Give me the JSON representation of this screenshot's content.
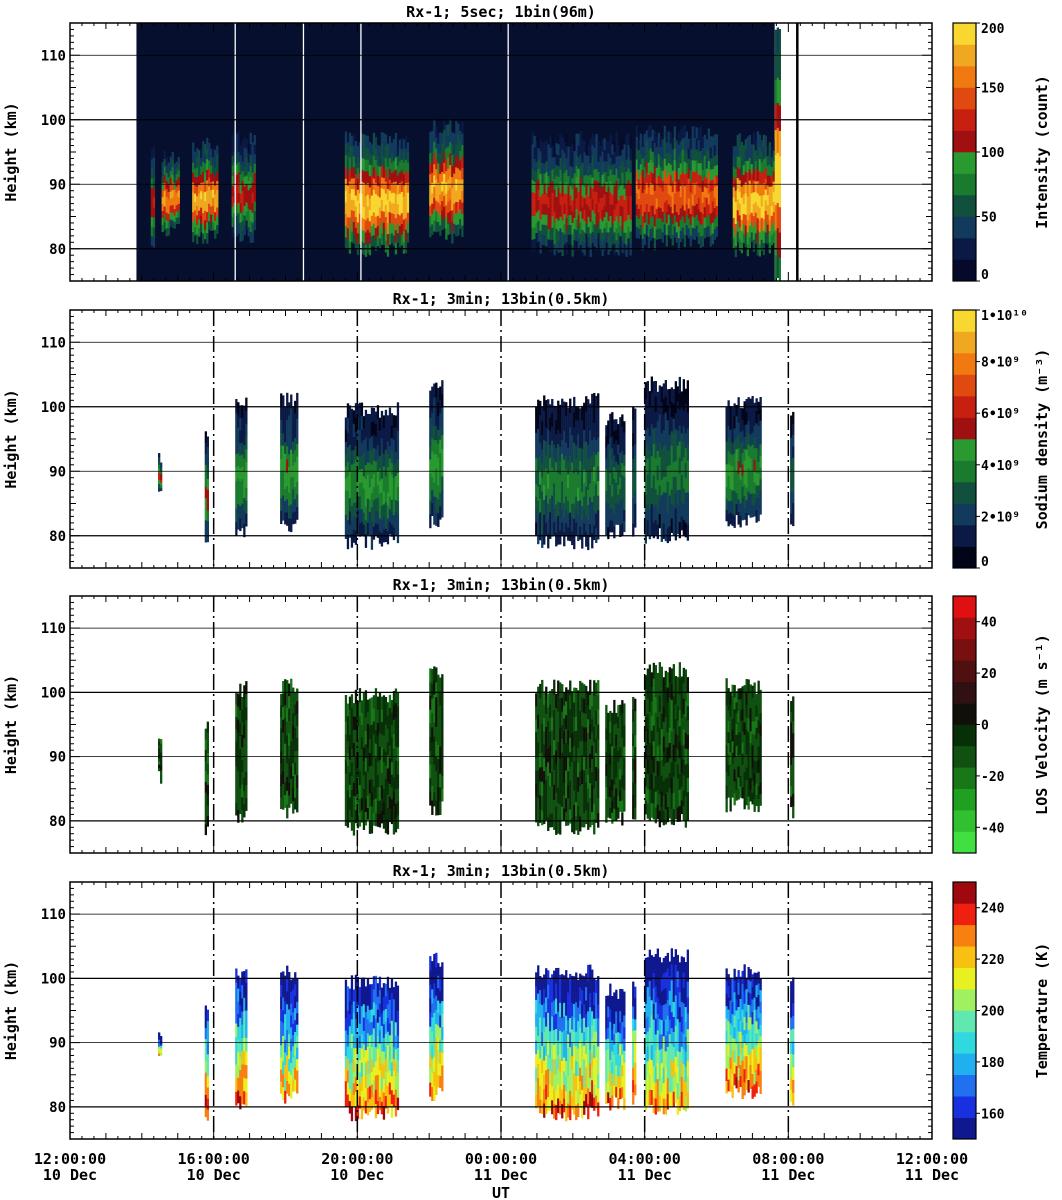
{
  "chart_data": [
    {
      "type": "heatmap",
      "title": "Rx-1;  5sec; 1bin(96m)",
      "ylabel": "Height (km)",
      "ylim": [
        75,
        115
      ],
      "yticks": [
        "80",
        "90",
        "100",
        "110"
      ],
      "colorbar": {
        "label": "Intensity (count)",
        "range": [
          0,
          200
        ],
        "ticks": [
          "0",
          "50",
          "100",
          "150",
          "200"
        ],
        "colors": [
          "#050a2a",
          "#0a1a45",
          "#123a5c",
          "#10503c",
          "#1a7a2e",
          "#2a9a30",
          "#a01010",
          "#c82010",
          "#e04a10",
          "#f07a10",
          "#f0a820",
          "#f8d830"
        ]
      },
      "background": "#06102e",
      "segments": [
        {
          "start": 14.25,
          "end": 14.35,
          "bottom": 81,
          "top": 95,
          "intensity": 0.55
        },
        {
          "start": 14.55,
          "end": 15.0,
          "bottom": 83,
          "top": 94,
          "intensity": 0.85
        },
        {
          "start": 15.4,
          "end": 16.1,
          "bottom": 82,
          "top": 96,
          "intensity": 0.9
        },
        {
          "start": 16.5,
          "end": 17.15,
          "bottom": 82,
          "top": 97,
          "intensity": 0.6
        },
        {
          "start": 19.65,
          "end": 21.4,
          "bottom": 80,
          "top": 97,
          "intensity": 0.95
        },
        {
          "start": 22.0,
          "end": 22.9,
          "bottom": 82,
          "top": 99,
          "intensity": 0.9
        },
        {
          "start": 24.85,
          "end": 27.6,
          "bottom": 80,
          "top": 97,
          "intensity": 0.6
        },
        {
          "start": 27.75,
          "end": 30.0,
          "bottom": 81,
          "top": 98,
          "intensity": 0.75
        },
        {
          "start": 30.45,
          "end": 31.6,
          "bottom": 80,
          "top": 97,
          "intensity": 0.95
        },
        {
          "start": 31.62,
          "end": 31.75,
          "bottom": 75,
          "top": 115,
          "intensity": 1.0
        }
      ],
      "vlines_white": [
        16.6,
        18.5,
        20.1,
        24.2,
        31.9,
        32.25
      ]
    },
    {
      "type": "heatmap",
      "title": "Rx-1; 3min; 13bin(0.5km)",
      "ylabel": "Height (km)",
      "ylim": [
        75,
        115
      ],
      "yticks": [
        "80",
        "90",
        "100",
        "110"
      ],
      "colorbar": {
        "label": "Sodium density (m⁻³)",
        "range": [
          0,
          10000000000.0
        ],
        "ticks": [
          "0",
          "2•10⁹",
          "4•10⁹",
          "6•10⁹",
          "8•10⁹",
          "1•10¹⁰"
        ],
        "colors": [
          "#020418",
          "#0a1a45",
          "#123a5c",
          "#10503c",
          "#1a7a2e",
          "#2a9a30",
          "#a01010",
          "#c82010",
          "#e04a10",
          "#f07a10",
          "#f0a820",
          "#f8d830"
        ]
      },
      "segments": [
        {
          "start": 14.45,
          "end": 14.55,
          "bottom": 87,
          "top": 92,
          "intensity": 0.62
        },
        {
          "start": 15.75,
          "end": 15.82,
          "bottom": 79,
          "top": 95,
          "intensity": 0.5
        },
        {
          "start": 16.6,
          "end": 16.9,
          "bottom": 80.5,
          "top": 100.5,
          "intensity": 0.45
        },
        {
          "start": 17.85,
          "end": 18.35,
          "bottom": 81.5,
          "top": 101,
          "intensity": 0.45
        },
        {
          "start": 19.65,
          "end": 21.1,
          "bottom": 79,
          "top": 99.5,
          "intensity": 0.42
        },
        {
          "start": 22.0,
          "end": 22.35,
          "bottom": 82,
          "top": 103,
          "intensity": 0.45
        },
        {
          "start": 24.95,
          "end": 26.7,
          "bottom": 79,
          "top": 101,
          "intensity": 0.38
        },
        {
          "start": 26.9,
          "end": 27.45,
          "bottom": 80.5,
          "top": 98,
          "intensity": 0.36
        },
        {
          "start": 27.65,
          "end": 27.75,
          "bottom": 81,
          "top": 99,
          "intensity": 0.3
        },
        {
          "start": 28.0,
          "end": 29.2,
          "bottom": 80,
          "top": 103.5,
          "intensity": 0.36
        },
        {
          "start": 30.25,
          "end": 31.2,
          "bottom": 82.5,
          "top": 101,
          "intensity": 0.45
        },
        {
          "start": 32.05,
          "end": 32.15,
          "bottom": 81,
          "top": 99.5,
          "intensity": 0.3
        }
      ],
      "vlines_dashed": [
        16,
        20,
        24,
        28,
        32
      ]
    },
    {
      "type": "heatmap",
      "title": "Rx-1; 3min; 13bin(0.5km)",
      "ylabel": "Height (km)",
      "ylim": [
        75,
        115
      ],
      "yticks": [
        "80",
        "90",
        "100",
        "110"
      ],
      "colorbar": {
        "label": "LOS Velocity (m s⁻¹)",
        "range": [
          -50,
          50
        ],
        "ticks": [
          "-40",
          "-20",
          "0",
          "20",
          "40"
        ],
        "colors": [
          "#40e040",
          "#30c030",
          "#20a020",
          "#187818",
          "#105010",
          "#083008",
          "#101008",
          "#301010",
          "#501010",
          "#781010",
          "#a01010",
          "#e01010"
        ]
      },
      "segments": [
        {
          "start": 14.45,
          "end": 14.55,
          "bottom": 87,
          "top": 92,
          "intensity": 0.5
        },
        {
          "start": 15.75,
          "end": 15.82,
          "bottom": 79,
          "top": 95,
          "intensity": 0.5
        },
        {
          "start": 16.6,
          "end": 16.9,
          "bottom": 80.5,
          "top": 100.5,
          "intensity": 0.5
        },
        {
          "start": 17.85,
          "end": 18.35,
          "bottom": 81.5,
          "top": 101,
          "intensity": 0.5
        },
        {
          "start": 19.65,
          "end": 21.1,
          "bottom": 79,
          "top": 99.5,
          "intensity": 0.5
        },
        {
          "start": 22.0,
          "end": 22.35,
          "bottom": 82,
          "top": 103,
          "intensity": 0.5
        },
        {
          "start": 24.95,
          "end": 26.7,
          "bottom": 79,
          "top": 101,
          "intensity": 0.5
        },
        {
          "start": 26.9,
          "end": 27.45,
          "bottom": 80.5,
          "top": 98,
          "intensity": 0.5
        },
        {
          "start": 27.65,
          "end": 27.75,
          "bottom": 81,
          "top": 99,
          "intensity": 0.5
        },
        {
          "start": 28.0,
          "end": 29.2,
          "bottom": 80,
          "top": 103.5,
          "intensity": 0.5
        },
        {
          "start": 30.25,
          "end": 31.2,
          "bottom": 82.5,
          "top": 101,
          "intensity": 0.5
        },
        {
          "start": 32.05,
          "end": 32.15,
          "bottom": 81,
          "top": 99.5,
          "intensity": 0.5
        }
      ],
      "vlines_dashed": [
        16,
        20,
        24,
        28,
        32
      ]
    },
    {
      "type": "heatmap",
      "title": "Rx-1; 3min; 13bin(0.5km)",
      "ylabel": "Height (km)",
      "xlabel": "UT",
      "ylim": [
        75,
        115
      ],
      "yticks": [
        "80",
        "90",
        "100",
        "110"
      ],
      "xticks": [
        {
          "time": "12:00:00",
          "date": "10 Dec"
        },
        {
          "time": "16:00:00",
          "date": "10 Dec"
        },
        {
          "time": "20:00:00",
          "date": "10 Dec"
        },
        {
          "time": "00:00:00",
          "date": "11 Dec"
        },
        {
          "time": "04:00:00",
          "date": "11 Dec"
        },
        {
          "time": "08:00:00",
          "date": "11 Dec"
        },
        {
          "time": "12:00:00",
          "date": "11 Dec"
        }
      ],
      "xlim_hours": [
        12,
        36
      ],
      "colorbar": {
        "label": "Temperature (K)",
        "range": [
          150,
          250
        ],
        "ticks": [
          "160",
          "180",
          "200",
          "220",
          "240"
        ],
        "colors": [
          "#101890",
          "#1830e0",
          "#2070f0",
          "#20b0f0",
          "#30d8e0",
          "#60e8b0",
          "#a0f060",
          "#e8f020",
          "#f8c010",
          "#f88010",
          "#f02010",
          "#a00810"
        ]
      },
      "segments": [
        {
          "start": 14.45,
          "end": 14.55,
          "bottom": 87,
          "top": 92,
          "intensity": 0.4
        },
        {
          "start": 15.75,
          "end": 15.82,
          "bottom": 79,
          "top": 95,
          "intensity": 0.6
        },
        {
          "start": 16.6,
          "end": 16.9,
          "bottom": 80.5,
          "top": 100.5,
          "intensity": 0.55
        },
        {
          "start": 17.85,
          "end": 18.35,
          "bottom": 81.5,
          "top": 101,
          "intensity": 0.45
        },
        {
          "start": 19.65,
          "end": 21.1,
          "bottom": 79,
          "top": 99.5,
          "intensity": 0.55
        },
        {
          "start": 22.0,
          "end": 22.35,
          "bottom": 82,
          "top": 103,
          "intensity": 0.5
        },
        {
          "start": 24.95,
          "end": 26.7,
          "bottom": 79,
          "top": 101,
          "intensity": 0.55
        },
        {
          "start": 26.9,
          "end": 27.45,
          "bottom": 80.5,
          "top": 98,
          "intensity": 0.5
        },
        {
          "start": 27.65,
          "end": 27.75,
          "bottom": 81,
          "top": 99,
          "intensity": 0.6
        },
        {
          "start": 28.0,
          "end": 29.2,
          "bottom": 80,
          "top": 103.5,
          "intensity": 0.45
        },
        {
          "start": 30.25,
          "end": 31.2,
          "bottom": 82.5,
          "top": 101,
          "intensity": 0.55
        },
        {
          "start": 32.05,
          "end": 32.15,
          "bottom": 81,
          "top": 99.5,
          "intensity": 0.5
        }
      ],
      "vlines_dashed": [
        16,
        20,
        24,
        28,
        32
      ]
    }
  ]
}
